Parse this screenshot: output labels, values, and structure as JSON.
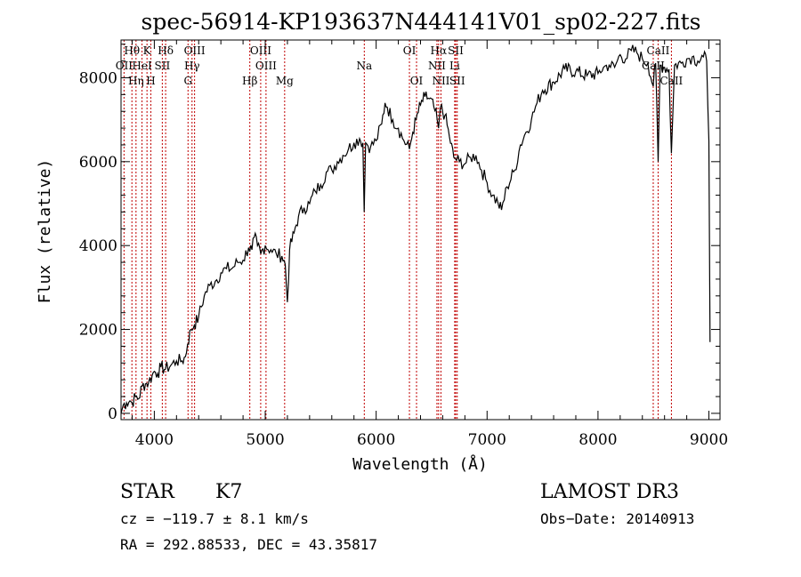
{
  "chart_data": {
    "type": "line",
    "title": "spec-56914-KP193637N444141V01_sp02-227.fits",
    "xlabel": "Wavelength (Å)",
    "ylabel": "Flux (relative)",
    "xlim": [
      3700,
      9100
    ],
    "ylim": [
      -150,
      8900
    ],
    "x_ticks": [
      4000,
      5000,
      6000,
      7000,
      8000,
      9000
    ],
    "y_ticks": [
      0,
      2000,
      4000,
      6000,
      8000
    ],
    "series": [
      {
        "name": "flux",
        "points": [
          [
            3700,
            0
          ],
          [
            3720,
            200
          ],
          [
            3750,
            250
          ],
          [
            3780,
            300
          ],
          [
            3800,
            250
          ],
          [
            3830,
            400
          ],
          [
            3860,
            350
          ],
          [
            3890,
            650
          ],
          [
            3920,
            700
          ],
          [
            3950,
            750
          ],
          [
            3980,
            900
          ],
          [
            4000,
            1000
          ],
          [
            4030,
            950
          ],
          [
            4060,
            1100
          ],
          [
            4100,
            1050
          ],
          [
            4150,
            1150
          ],
          [
            4200,
            1250
          ],
          [
            4250,
            1250
          ],
          [
            4280,
            1350
          ],
          [
            4300,
            1650
          ],
          [
            4330,
            2000
          ],
          [
            4360,
            2100
          ],
          [
            4400,
            2300
          ],
          [
            4450,
            2800
          ],
          [
            4500,
            3050
          ],
          [
            4550,
            3150
          ],
          [
            4600,
            3350
          ],
          [
            4650,
            3450
          ],
          [
            4700,
            3450
          ],
          [
            4750,
            3600
          ],
          [
            4800,
            3650
          ],
          [
            4850,
            3950
          ],
          [
            4880,
            3900
          ],
          [
            4900,
            4200
          ],
          [
            4930,
            4000
          ],
          [
            4960,
            3800
          ],
          [
            5000,
            4000
          ],
          [
            5050,
            3900
          ],
          [
            5100,
            3800
          ],
          [
            5150,
            3750
          ],
          [
            5180,
            3550
          ],
          [
            5200,
            2650
          ],
          [
            5220,
            3900
          ],
          [
            5260,
            4300
          ],
          [
            5300,
            4700
          ],
          [
            5350,
            4900
          ],
          [
            5400,
            5000
          ],
          [
            5450,
            5300
          ],
          [
            5500,
            5450
          ],
          [
            5550,
            5750
          ],
          [
            5600,
            5800
          ],
          [
            5650,
            6000
          ],
          [
            5700,
            6150
          ],
          [
            5750,
            6300
          ],
          [
            5800,
            6450
          ],
          [
            5850,
            6550
          ],
          [
            5880,
            6450
          ],
          [
            5892,
            4800
          ],
          [
            5905,
            6450
          ],
          [
            5950,
            6350
          ],
          [
            6000,
            6500
          ],
          [
            6050,
            6900
          ],
          [
            6080,
            7400
          ],
          [
            6100,
            7300
          ],
          [
            6150,
            7000
          ],
          [
            6200,
            6800
          ],
          [
            6250,
            6500
          ],
          [
            6300,
            6300
          ],
          [
            6330,
            6700
          ],
          [
            6360,
            7000
          ],
          [
            6400,
            7350
          ],
          [
            6440,
            7550
          ],
          [
            6480,
            7500
          ],
          [
            6520,
            7300
          ],
          [
            6550,
            7000
          ],
          [
            6563,
            6800
          ],
          [
            6580,
            7300
          ],
          [
            6620,
            7100
          ],
          [
            6660,
            6600
          ],
          [
            6700,
            6100
          ],
          [
            6750,
            6000
          ],
          [
            6800,
            5950
          ],
          [
            6850,
            6100
          ],
          [
            6900,
            6150
          ],
          [
            6950,
            5800
          ],
          [
            7000,
            5500
          ],
          [
            7050,
            5200
          ],
          [
            7100,
            5000
          ],
          [
            7130,
            4850
          ],
          [
            7180,
            5400
          ],
          [
            7250,
            5800
          ],
          [
            7300,
            6400
          ],
          [
            7350,
            6700
          ],
          [
            7400,
            7000
          ],
          [
            7450,
            7400
          ],
          [
            7500,
            7700
          ],
          [
            7600,
            7900
          ],
          [
            7700,
            8200
          ],
          [
            7800,
            8150
          ],
          [
            7900,
            8050
          ],
          [
            8000,
            8100
          ],
          [
            8050,
            8250
          ],
          [
            8100,
            8300
          ],
          [
            8150,
            8250
          ],
          [
            8200,
            8550
          ],
          [
            8250,
            8450
          ],
          [
            8300,
            8650
          ],
          [
            8350,
            8600
          ],
          [
            8400,
            8450
          ],
          [
            8450,
            8350
          ],
          [
            8498,
            7800
          ],
          [
            8520,
            8350
          ],
          [
            8542,
            6000
          ],
          [
            8560,
            8300
          ],
          [
            8600,
            8250
          ],
          [
            8640,
            8200
          ],
          [
            8662,
            6200
          ],
          [
            8690,
            8300
          ],
          [
            8750,
            8350
          ],
          [
            8800,
            8450
          ],
          [
            8850,
            8500
          ],
          [
            8900,
            8400
          ],
          [
            8950,
            8500
          ],
          [
            8980,
            8400
          ],
          [
            9000,
            6500
          ],
          [
            9010,
            1700
          ]
        ]
      }
    ],
    "spectral_lines": [
      {
        "label": "Hθ",
        "wavelength": 3798,
        "row": 1
      },
      {
        "label": "OII",
        "wavelength": 3727,
        "row": 2
      },
      {
        "label": "Hη",
        "wavelength": 3835,
        "row": 3
      },
      {
        "label": "K",
        "wavelength": 3934,
        "row": 1
      },
      {
        "label": "HeI",
        "wavelength": 3889,
        "row": 2
      },
      {
        "label": "H",
        "wavelength": 3969,
        "row": 3
      },
      {
        "label": "SII",
        "wavelength": 4072,
        "row": 2
      },
      {
        "label": "Hδ",
        "wavelength": 4102,
        "row": 1
      },
      {
        "label": "OIII",
        "wavelength": 4363,
        "row": 1
      },
      {
        "label": "Hγ",
        "wavelength": 4340,
        "row": 2
      },
      {
        "label": "G",
        "wavelength": 4304,
        "row": 3
      },
      {
        "label": "Hβ",
        "wavelength": 4861,
        "row": 3
      },
      {
        "label": "OIII",
        "wavelength": 4959,
        "row": 1
      },
      {
        "label": "OIII",
        "wavelength": 5007,
        "row": 2
      },
      {
        "label": "Mg",
        "wavelength": 5175,
        "row": 3
      },
      {
        "label": "Na",
        "wavelength": 5893,
        "row": 2
      },
      {
        "label": "OI",
        "wavelength": 6300,
        "row": 1
      },
      {
        "label": "OI",
        "wavelength": 6364,
        "row": 3
      },
      {
        "label": "Hα",
        "wavelength": 6563,
        "row": 1
      },
      {
        "label": "NII",
        "wavelength": 6548,
        "row": 2
      },
      {
        "label": "NII",
        "wavelength": 6584,
        "row": 3
      },
      {
        "label": "SII",
        "wavelength": 6717,
        "row": 1
      },
      {
        "label": "Li",
        "wavelength": 6708,
        "row": 2
      },
      {
        "label": "SII",
        "wavelength": 6731,
        "row": 3
      },
      {
        "label": "CaII",
        "wavelength": 8542,
        "row": 1
      },
      {
        "label": "CaII",
        "wavelength": 8498,
        "row": 2
      },
      {
        "label": "CaII",
        "wavelength": 8662,
        "row": 3
      }
    ]
  },
  "info": {
    "object_class": "STAR",
    "subclass": "K7",
    "survey": "LAMOST DR3",
    "redshift": "cz = −119.7 ± 8.1 km/s",
    "obs_date": "Obs−Date: 20140913",
    "coords": "RA = 292.88533, DEC =  43.35817"
  },
  "colors": {
    "spectrum": "#000000",
    "line_marker": "#c00000"
  }
}
